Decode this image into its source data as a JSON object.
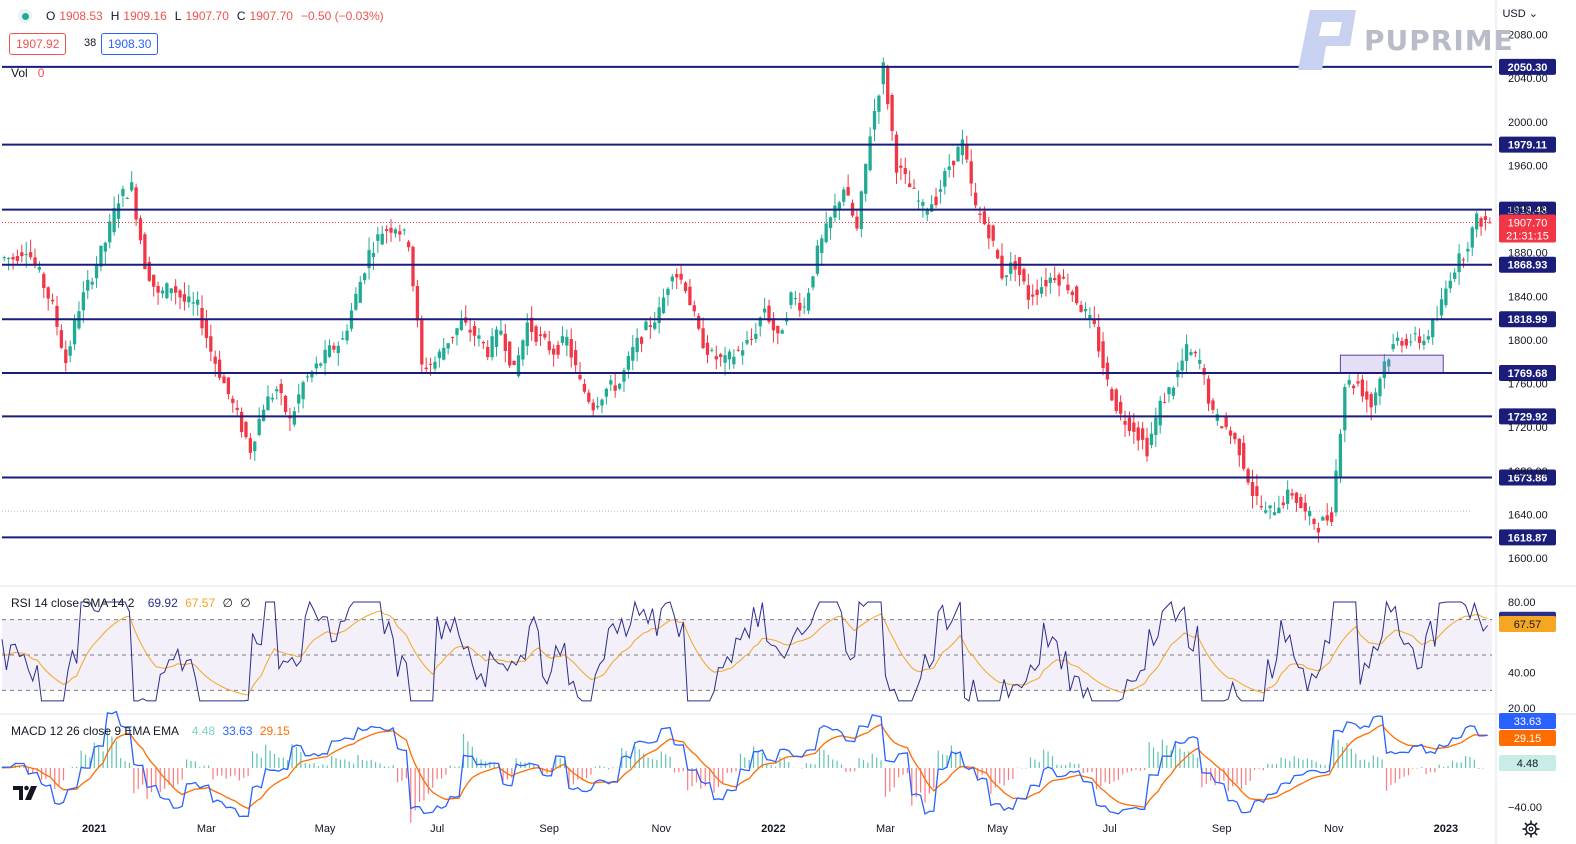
{
  "legend": {
    "open_label": "O",
    "open": "1908.53",
    "high_label": "H",
    "high": "1909.16",
    "low_label": "L",
    "low": "1907.70",
    "close_label": "C",
    "close": "1907.70",
    "change": "−0.50 (−0.03%)"
  },
  "quote": {
    "bid": "1907.92",
    "spread": "38",
    "ask": "1908.30"
  },
  "volume": {
    "label": "Vol",
    "value": "0"
  },
  "currency": "USD",
  "brand": "PUPRIME",
  "price_tag": {
    "price": "1907.70",
    "countdown": "21:31:15"
  },
  "rsi": {
    "label": "RSI 14 close SMA 14 2",
    "value": "69.92",
    "sma": "67.57",
    "extra1": "∅",
    "extra2": "∅"
  },
  "macd": {
    "label": "MACD 12 26 close 9 EMA EMA",
    "hist": "4.48",
    "macd": "33.63",
    "signal": "29.15"
  },
  "colors": {
    "up": "#22ab94",
    "down": "#f23645",
    "level": "#1a1d7a",
    "rsi": "#2a2e8c",
    "sma": "#f5a623",
    "macd_line": "#2962ff",
    "signal_line": "#ff6d00"
  },
  "chart_data": [
    {
      "type": "candlestick",
      "title": "",
      "y_ticks": [
        1600,
        1640,
        1680,
        1720,
        1760,
        1800,
        1840,
        1880,
        1920,
        1960,
        2000,
        2040,
        2080
      ],
      "y_tick_labels": [
        "1600.00",
        "1640.00",
        "1680.00",
        "1720.00",
        "1760.00",
        "1800.00",
        "1840.00",
        "1880.00",
        "1920.00",
        "1960.00",
        "2000.00",
        "2040.00",
        "2080.00"
      ],
      "ylim": [
        1578,
        2086
      ],
      "x_labels": [
        "2021",
        "Mar",
        "May",
        "Jul",
        "Sep",
        "Nov",
        "2022",
        "Mar",
        "May",
        "Jul",
        "Sep",
        "Nov",
        "2023"
      ],
      "x_label_weeks": [
        7,
        15.5,
        24.5,
        33,
        41.5,
        50,
        58.5,
        67,
        75.5,
        84,
        92.5,
        101,
        109.5
      ],
      "total_weeks": 113,
      "horizontal_levels": [
        2050.3,
        1979.11,
        1919.48,
        1868.93,
        1818.99,
        1769.68,
        1729.92,
        1673.86,
        1618.87
      ],
      "horizontal_level_labels": [
        "2050.30",
        "1979.11",
        "1919.48",
        "1868.93",
        "1818.99",
        "1769.68",
        "1729.92",
        "1673.86",
        "1618.87"
      ],
      "last_price": 1907.7,
      "weekly_close": [
        1875,
        1885,
        1860,
        1830,
        1780,
        1830,
        1860,
        1890,
        1930,
        1940,
        1870,
        1840,
        1850,
        1835,
        1830,
        1790,
        1760,
        1730,
        1700,
        1740,
        1755,
        1725,
        1760,
        1775,
        1790,
        1800,
        1840,
        1880,
        1900,
        1905,
        1890,
        1775,
        1780,
        1800,
        1815,
        1805,
        1790,
        1810,
        1770,
        1815,
        1800,
        1790,
        1800,
        1760,
        1740,
        1755,
        1760,
        1790,
        1810,
        1825,
        1865,
        1850,
        1805,
        1785,
        1780,
        1790,
        1800,
        1830,
        1800,
        1840,
        1830,
        1880,
        1910,
        1940,
        1900,
        1990,
        2050,
        1960,
        1940,
        1920,
        1930,
        1960,
        1980,
        1920,
        1900,
        1860,
        1870,
        1840,
        1850,
        1860,
        1850,
        1830,
        1810,
        1760,
        1730,
        1720,
        1700,
        1740,
        1760,
        1790,
        1780,
        1730,
        1720,
        1700,
        1660,
        1640,
        1650,
        1660,
        1640,
        1630,
        1640,
        1760,
        1760,
        1740,
        1780,
        1800,
        1800,
        1800,
        1820,
        1860,
        1880,
        1910,
        1908
      ],
      "rsi": {
        "ylim": [
          20,
          80
        ],
        "ticks": [
          "80.00",
          "40.00",
          "20.00"
        ],
        "tick_values": [
          80,
          40,
          20
        ],
        "upper_band": 70,
        "lower_band": 30
      },
      "macd": {
        "ticks": [
          "−40.00"
        ],
        "tick_values": [
          -40
        ],
        "ylim": [
          -45,
          45
        ]
      }
    }
  ]
}
